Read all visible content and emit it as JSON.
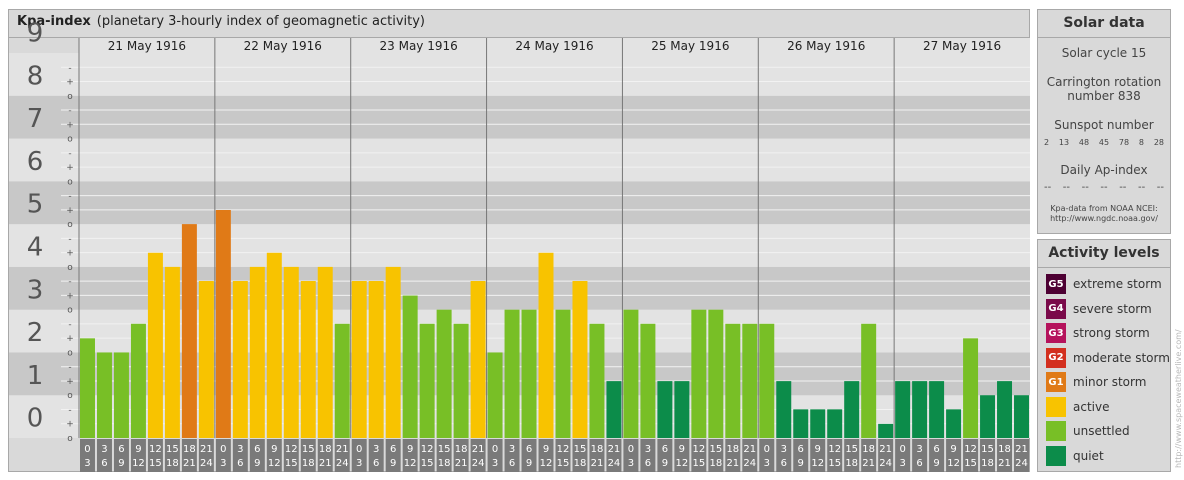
{
  "chart": {
    "title": "Kpa-index",
    "subtitle": "(planetary 3-hourly index of geomagnetic activity)"
  },
  "solar": {
    "title": "Solar data",
    "cycle": "Solar cycle 15",
    "carrington_line1": "Carrington rotation",
    "carrington_line2": "number 838",
    "sunspot_label": "Sunspot number",
    "sunspot_values": [
      "2",
      "13",
      "48",
      "45",
      "78",
      "8",
      "28"
    ],
    "ap_label": "Daily Ap-index",
    "ap_values": [
      "--",
      "--",
      "--",
      "--",
      "--",
      "--",
      "--"
    ],
    "credit_line1": "Kpa-data from NOAA NCEI:",
    "credit_line2": "http://www.ngdc.noaa.gov/"
  },
  "activity": {
    "title": "Activity levels",
    "levels": [
      {
        "code": "G5",
        "label": "extreme storm",
        "color": "#4d0033"
      },
      {
        "code": "G4",
        "label": "severe storm",
        "color": "#7a0a4a"
      },
      {
        "code": "G3",
        "label": "strong storm",
        "color": "#b5135c"
      },
      {
        "code": "G2",
        "label": "moderate storm",
        "color": "#d32f1e"
      },
      {
        "code": "G1",
        "label": "minor storm",
        "color": "#e07a17"
      },
      {
        "code": "",
        "label": "active",
        "color": "#f8c300"
      },
      {
        "code": "",
        "label": "unsettled",
        "color": "#78bf26"
      },
      {
        "code": "",
        "label": "quiet",
        "color": "#0c8c4a"
      }
    ]
  },
  "watermark": "http://www.spaceweatherlive.com/",
  "chart_data": {
    "type": "bar",
    "title": "Kpa-index",
    "subtitle": "(planetary 3-hourly index of geomagnetic activity)",
    "ylim": [
      0,
      9
    ],
    "y_ticks": [
      "0",
      "1",
      "2",
      "3",
      "4",
      "5",
      "6",
      "7",
      "8",
      "9"
    ],
    "sub_tick_labels": [
      "o",
      "+",
      "-"
    ],
    "days": [
      "21 May 1916",
      "22 May 1916",
      "23 May 1916",
      "24 May 1916",
      "25 May 1916",
      "26 May 1916",
      "27 May 1916"
    ],
    "interval_labels": [
      [
        "0",
        "3"
      ],
      [
        "3",
        "6"
      ],
      [
        "6",
        "9"
      ],
      [
        "9",
        "12"
      ],
      [
        "12",
        "15"
      ],
      [
        "15",
        "18"
      ],
      [
        "18",
        "21"
      ],
      [
        "21",
        "24"
      ]
    ],
    "values": [
      [
        2.33,
        2.0,
        2.0,
        2.67,
        4.33,
        4.0,
        5.0,
        3.67
      ],
      [
        5.33,
        3.67,
        4.0,
        4.33,
        4.0,
        3.67,
        4.0,
        2.67
      ],
      [
        3.67,
        3.67,
        4.0,
        3.33,
        2.67,
        3.0,
        2.67,
        3.67
      ],
      [
        2.0,
        3.0,
        3.0,
        4.33,
        3.0,
        3.67,
        2.67,
        1.33
      ],
      [
        3.0,
        2.67,
        1.33,
        1.33,
        3.0,
        3.0,
        2.67,
        2.67
      ],
      [
        2.67,
        1.33,
        0.67,
        0.67,
        0.67,
        1.33,
        2.67,
        0.33
      ],
      [
        1.33,
        1.33,
        1.33,
        0.67,
        2.33,
        1.0,
        1.33,
        1.0
      ]
    ],
    "grid": true,
    "legend_position": "right"
  }
}
